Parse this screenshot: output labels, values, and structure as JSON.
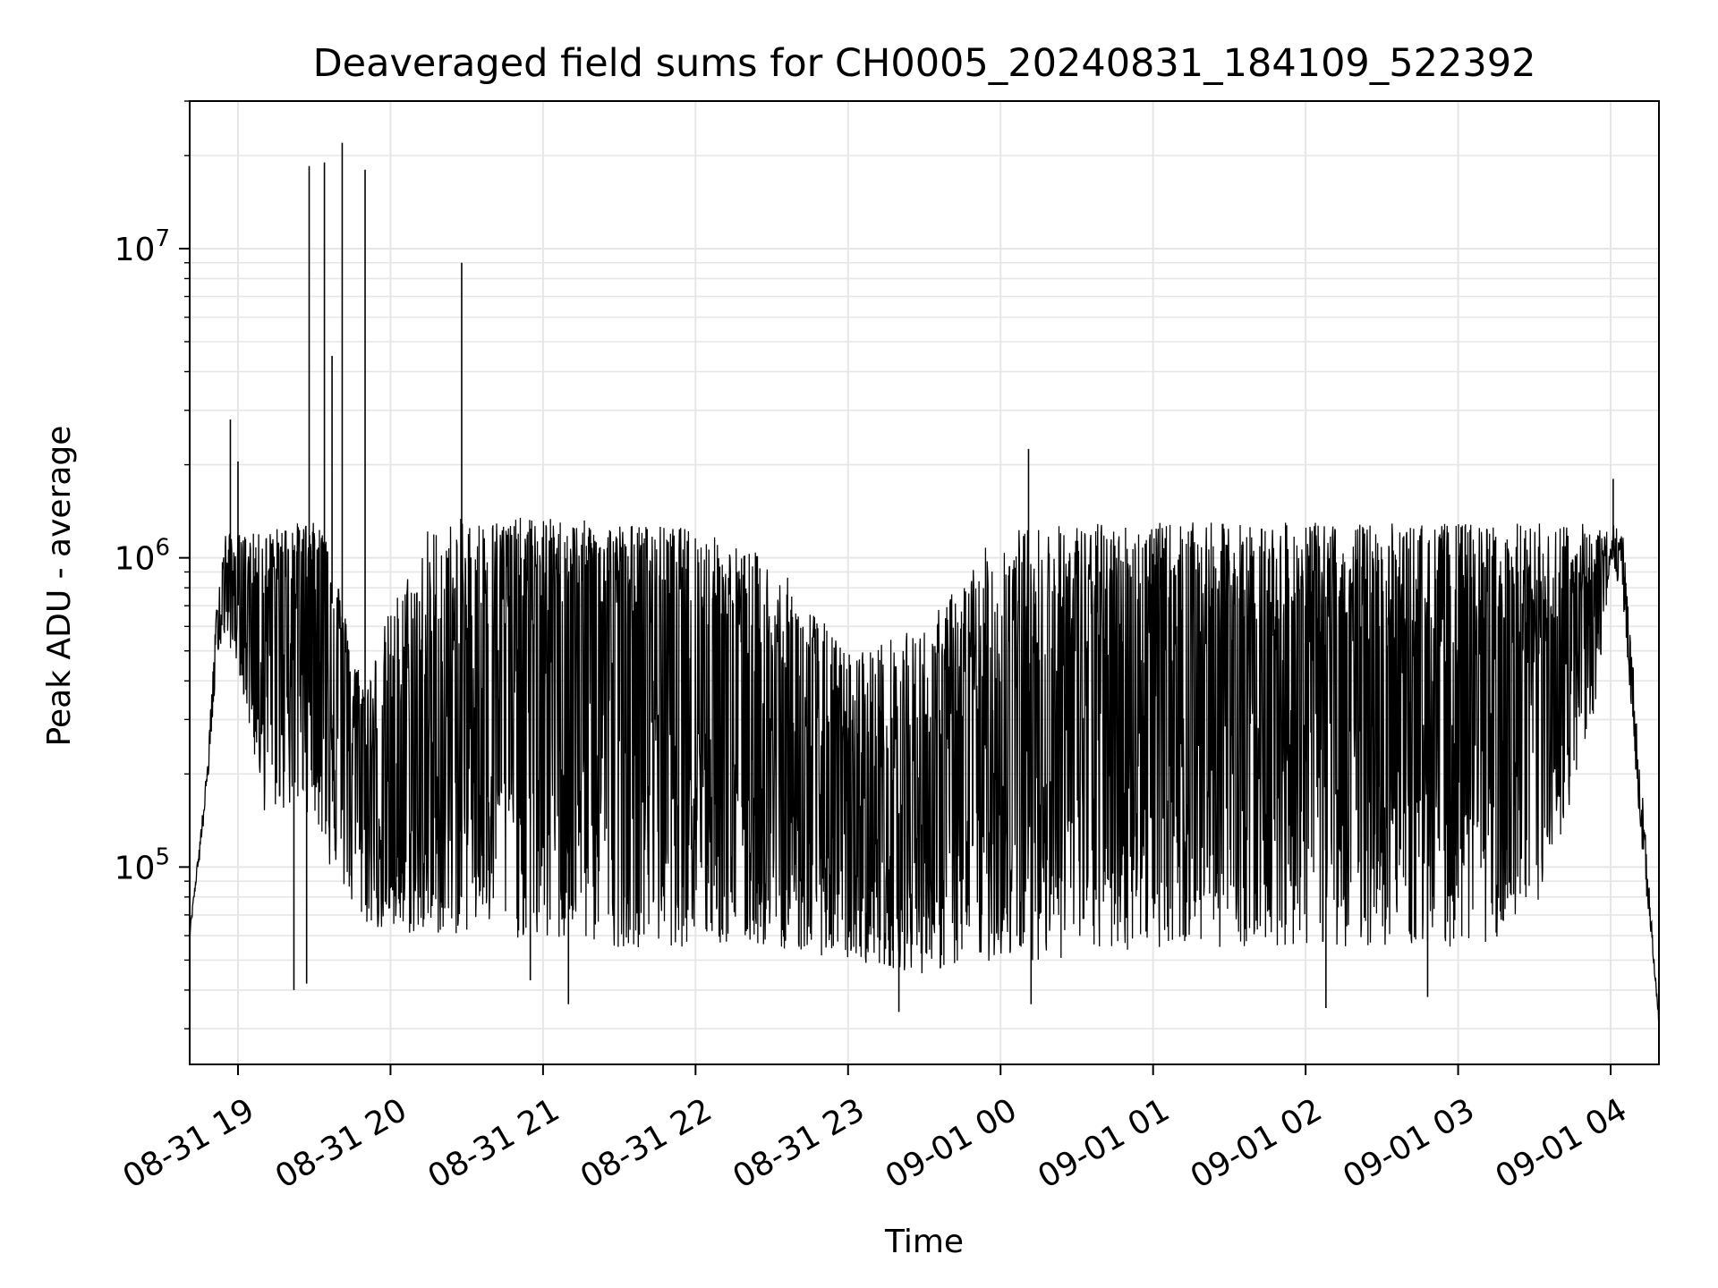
{
  "chart_data": {
    "type": "line",
    "title": "Deaveraged field sums for CH0005_20240831_184109_522392",
    "xlabel": "Time",
    "ylabel": "Peak ADU - average",
    "yscale": "log",
    "ylim": [
      23000,
      30000000
    ],
    "xlim": [
      "2024-08-31 18:41",
      "2024-09-01 04:19"
    ],
    "grid": true,
    "line_color": "#000000",
    "grid_color": "#e6e6e6",
    "x_ticks": [
      "08-31 19",
      "08-31 20",
      "08-31 21",
      "08-31 22",
      "08-31 23",
      "09-01 00",
      "09-01 01",
      "09-01 02",
      "09-01 03",
      "09-01 04"
    ],
    "y_ticks": [
      {
        "base": "10",
        "exp": "5",
        "value": 100000
      },
      {
        "base": "10",
        "exp": "6",
        "value": 1000000
      },
      {
        "base": "10",
        "exp": "7",
        "value": 10000000
      }
    ],
    "series": [
      {
        "description_of_shape": "dense noisy trace",
        "x": [
          "2024-08-31 18:41",
          "2024-08-31 18:44",
          "2024-08-31 18:48",
          "2024-08-31 18:52",
          "2024-08-31 18:55",
          "2024-08-31 19:00",
          "2024-08-31 19:10",
          "2024-08-31 19:20",
          "2024-08-31 19:30",
          "2024-08-31 19:35",
          "2024-08-31 19:40",
          "2024-08-31 19:45",
          "2024-08-31 19:50",
          "2024-08-31 20:00",
          "2024-08-31 20:15",
          "2024-08-31 20:30",
          "2024-08-31 20:45",
          "2024-08-31 21:00",
          "2024-08-31 21:30",
          "2024-08-31 22:00",
          "2024-08-31 22:30",
          "2024-08-31 23:00",
          "2024-08-31 23:30",
          "2024-09-01 00:00",
          "2024-09-01 00:30",
          "2024-09-01 01:00",
          "2024-09-01 01:30",
          "2024-09-01 02:00",
          "2024-09-01 02:30",
          "2024-09-01 03:00",
          "2024-09-01 03:30",
          "2024-09-01 03:55",
          "2024-09-01 04:00",
          "2024-09-01 04:05",
          "2024-09-01 04:12",
          "2024-09-01 04:19"
        ],
        "y": [
          60000,
          100000,
          200000,
          600000,
          900000,
          750000,
          700000,
          800000,
          900000,
          900000,
          500000,
          300000,
          200000,
          150000,
          170000,
          400000,
          600000,
          600000,
          600000,
          500000,
          200000,
          130000,
          160000,
          250000,
          400000,
          450000,
          450000,
          450000,
          400000,
          350000,
          400000,
          700000,
          1100000,
          900000,
          150000,
          32000
        ],
        "band_low": [
          60000,
          90000,
          180000,
          500000,
          550000,
          450000,
          150000,
          150000,
          150000,
          100000,
          90000,
          70000,
          65000,
          60000,
          60000,
          60000,
          60000,
          55000,
          55000,
          55000,
          55000,
          50000,
          45000,
          50000,
          50000,
          55000,
          55000,
          55000,
          55000,
          55000,
          60000,
          350000,
          1000000,
          700000,
          120000,
          32000
        ],
        "band_high": [
          60000,
          100000,
          220000,
          800000,
          1200000,
          1200000,
          1200000,
          1300000,
          1300000,
          1200000,
          800000,
          500000,
          400000,
          700000,
          1300000,
          1350000,
          1350000,
          1350000,
          1300000,
          1250000,
          1000000,
          500000,
          600000,
          1250000,
          1300000,
          1300000,
          1300000,
          1300000,
          1300000,
          1300000,
          1300000,
          1300000,
          1300000,
          1200000,
          200000,
          32000
        ]
      }
    ],
    "spikes": [
      {
        "x": "2024-08-31 18:57",
        "y": 2800000
      },
      {
        "x": "2024-08-31 19:00",
        "y": 2050000
      },
      {
        "x": "2024-08-31 19:28",
        "y": 18500000
      },
      {
        "x": "2024-08-31 19:34",
        "y": 19000000
      },
      {
        "x": "2024-08-31 19:37",
        "y": 4500000
      },
      {
        "x": "2024-08-31 19:41",
        "y": 22000000
      },
      {
        "x": "2024-08-31 19:50",
        "y": 18000000
      },
      {
        "x": "2024-08-31 20:28",
        "y": 9000000
      },
      {
        "x": "2024-09-01 00:11",
        "y": 2250000
      },
      {
        "x": "2024-09-01 04:01",
        "y": 1800000
      }
    ],
    "dips": [
      {
        "x": "2024-08-31 19:22",
        "y": 40000
      },
      {
        "x": "2024-08-31 19:27",
        "y": 42000
      },
      {
        "x": "2024-08-31 20:55",
        "y": 43000
      },
      {
        "x": "2024-08-31 21:10",
        "y": 36000
      },
      {
        "x": "2024-08-31 23:20",
        "y": 34000
      },
      {
        "x": "2024-09-01 00:12",
        "y": 36000
      },
      {
        "x": "2024-09-01 02:08",
        "y": 35000
      },
      {
        "x": "2024-09-01 02:48",
        "y": 38000
      }
    ]
  }
}
